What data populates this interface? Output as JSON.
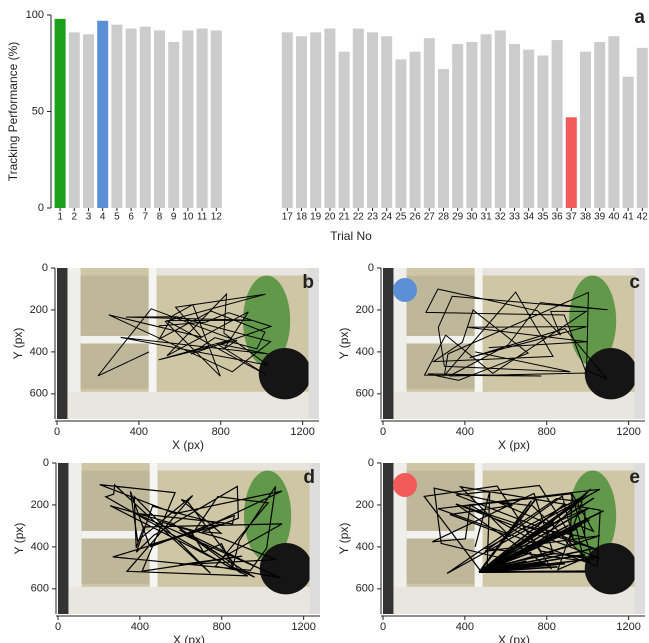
{
  "chart_data": [
    {
      "type": "bar",
      "title": "a",
      "x_label": "Trial No",
      "y_label": "Tracking Performance (%)",
      "categories": [
        "1",
        "2",
        "3",
        "4",
        "5",
        "6",
        "7",
        "8",
        "9",
        "10",
        "11",
        "12",
        null,
        null,
        null,
        null,
        "17",
        "18",
        "19",
        "20",
        "21",
        "22",
        "23",
        "24",
        "25",
        "26",
        "27",
        "28",
        "29",
        "30",
        "31",
        "32",
        "33",
        "34",
        "35",
        "36",
        "37",
        "38",
        "39",
        "40",
        "41",
        "42"
      ],
      "values": [
        98,
        91,
        90,
        97,
        95,
        93,
        94,
        92,
        86,
        92,
        93,
        92,
        null,
        null,
        null,
        null,
        91,
        89,
        91,
        93,
        81,
        93,
        91,
        89,
        77,
        81,
        88,
        72,
        85,
        86,
        90,
        92,
        85,
        82,
        79,
        87,
        47,
        81,
        86,
        89,
        68,
        83
      ],
      "colors": [
        "#1aa01a",
        "#cccccc",
        "#cccccc",
        "#5b8fd6",
        "#cccccc",
        "#cccccc",
        "#cccccc",
        "#cccccc",
        "#cccccc",
        "#cccccc",
        "#cccccc",
        "#cccccc",
        null,
        null,
        null,
        null,
        "#cccccc",
        "#cccccc",
        "#cccccc",
        "#cccccc",
        "#cccccc",
        "#cccccc",
        "#cccccc",
        "#cccccc",
        "#cccccc",
        "#cccccc",
        "#cccccc",
        "#cccccc",
        "#cccccc",
        "#cccccc",
        "#cccccc",
        "#cccccc",
        "#cccccc",
        "#cccccc",
        "#cccccc",
        "#cccccc",
        "#f25a5a",
        "#cccccc",
        "#cccccc",
        "#cccccc",
        "#cccccc",
        "#cccccc"
      ],
      "ylim": [
        0,
        100
      ],
      "yticks": [
        0,
        50,
        100
      ]
    },
    {
      "type": "image",
      "title": "b",
      "x_label": "X (px)",
      "y_label": "Y (px)",
      "xlim": [
        0,
        1280
      ],
      "ylim": [
        0,
        720
      ],
      "y_inverted": true,
      "xticks": [
        0,
        400,
        800,
        1200
      ],
      "yticks": [
        0,
        200,
        400,
        600
      ]
    },
    {
      "type": "image",
      "title": "c",
      "x_label": "X (px)",
      "y_label": "Y (px)",
      "xlim": [
        0,
        1280
      ],
      "ylim": [
        0,
        720
      ],
      "y_inverted": true,
      "xticks": [
        0,
        400,
        800,
        1200
      ],
      "yticks": [
        0,
        200,
        400,
        600
      ],
      "marker_color": "#5b8fd6"
    },
    {
      "type": "image",
      "title": "d",
      "x_label": "X (px)",
      "y_label": "Y (px)",
      "xlim": [
        0,
        1280
      ],
      "ylim": [
        0,
        720
      ],
      "y_inverted": true,
      "xticks": [
        0,
        400,
        800,
        1200
      ],
      "yticks": [
        0,
        200,
        400,
        600
      ]
    },
    {
      "type": "image",
      "title": "e",
      "x_label": "X (px)",
      "y_label": "Y (px)",
      "xlim": [
        0,
        1280
      ],
      "ylim": [
        0,
        720
      ],
      "y_inverted": true,
      "xticks": [
        0,
        400,
        800,
        1200
      ],
      "yticks": [
        0,
        200,
        400,
        600
      ],
      "marker_color": "#f25a5a"
    }
  ]
}
